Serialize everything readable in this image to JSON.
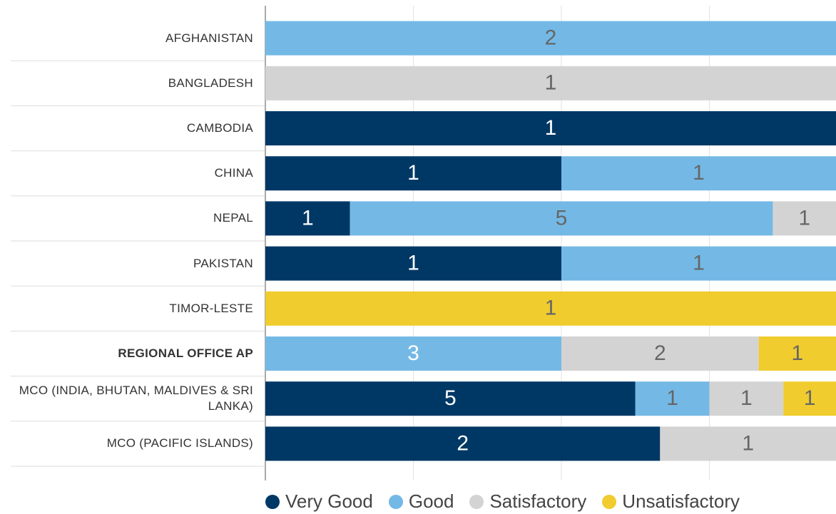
{
  "chart_data": {
    "type": "stacked-bar-100",
    "orientation": "horizontal",
    "categories": [
      "AFGHANISTAN",
      "BANGLADESH",
      "CAMBODIA",
      "CHINA",
      "NEPAL",
      "PAKISTAN",
      "TIMOR-LESTE",
      "REGIONAL OFFICE AP",
      "MCO (INDIA, BHUTAN, MALDIVES & SRI LANKA)",
      "MCO (PACIFIC ISLANDS)"
    ],
    "series": [
      {
        "name": "Very Good",
        "color": "#003865",
        "values": [
          null,
          null,
          1,
          1,
          1,
          1,
          null,
          null,
          5,
          2
        ]
      },
      {
        "name": "Good",
        "color": "#74b9e6",
        "values": [
          2,
          null,
          null,
          1,
          5,
          1,
          null,
          3,
          1,
          null
        ]
      },
      {
        "name": "Satisfactory",
        "color": "#d3d3d3",
        "values": [
          null,
          1,
          null,
          null,
          1,
          null,
          null,
          2,
          1,
          1
        ]
      },
      {
        "name": "Unsatisfactory",
        "color": "#f0cc2e",
        "values": [
          null,
          null,
          null,
          null,
          null,
          null,
          1,
          1,
          1,
          null
        ]
      }
    ],
    "xlim": [
      0,
      100
    ],
    "xticks": [
      0,
      25,
      50,
      75,
      100
    ],
    "grid": true,
    "legend": "bottom"
  }
}
